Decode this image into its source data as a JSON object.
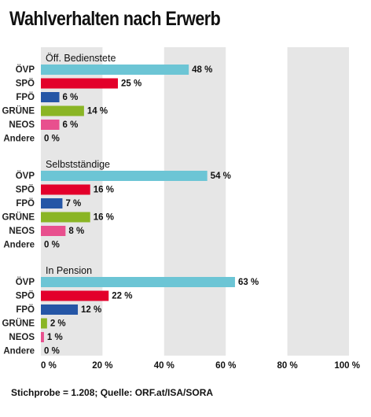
{
  "title": "Wahlverhalten nach Erwerb",
  "source": "Stichprobe = 1.208; Quelle: ORF.at/ISA/SORA",
  "chart_data": {
    "type": "bar",
    "orientation": "horizontal",
    "title": "Wahlverhalten nach Erwerb",
    "xlim": [
      0,
      100
    ],
    "xticks": [
      0,
      20,
      40,
      60,
      80,
      100
    ],
    "xtick_labels": [
      "0 %",
      "20 %",
      "40 %",
      "60 %",
      "80 %",
      "100 %"
    ],
    "value_suffix": " %",
    "grid": "alternating vertical bands",
    "categories": [
      "ÖVP",
      "SPÖ",
      "FPÖ",
      "GRÜNE",
      "NEOS",
      "Andere"
    ],
    "colors": {
      "ÖVP": "#6cc5d5",
      "SPÖ": "#e3002b",
      "FPÖ": "#2556a6",
      "GRÜNE": "#8ab525",
      "NEOS": "#e8508e",
      "Andere": "#bbbbbb"
    },
    "band_color": "#e6e6e6",
    "groups": [
      {
        "name": "Öff. Bedienstete",
        "values": [
          48,
          25,
          6,
          14,
          6,
          0
        ]
      },
      {
        "name": "Selbstständige",
        "values": [
          54,
          16,
          7,
          16,
          8,
          0
        ]
      },
      {
        "name": "In Pension",
        "values": [
          63,
          22,
          12,
          2,
          1,
          0
        ]
      }
    ]
  }
}
